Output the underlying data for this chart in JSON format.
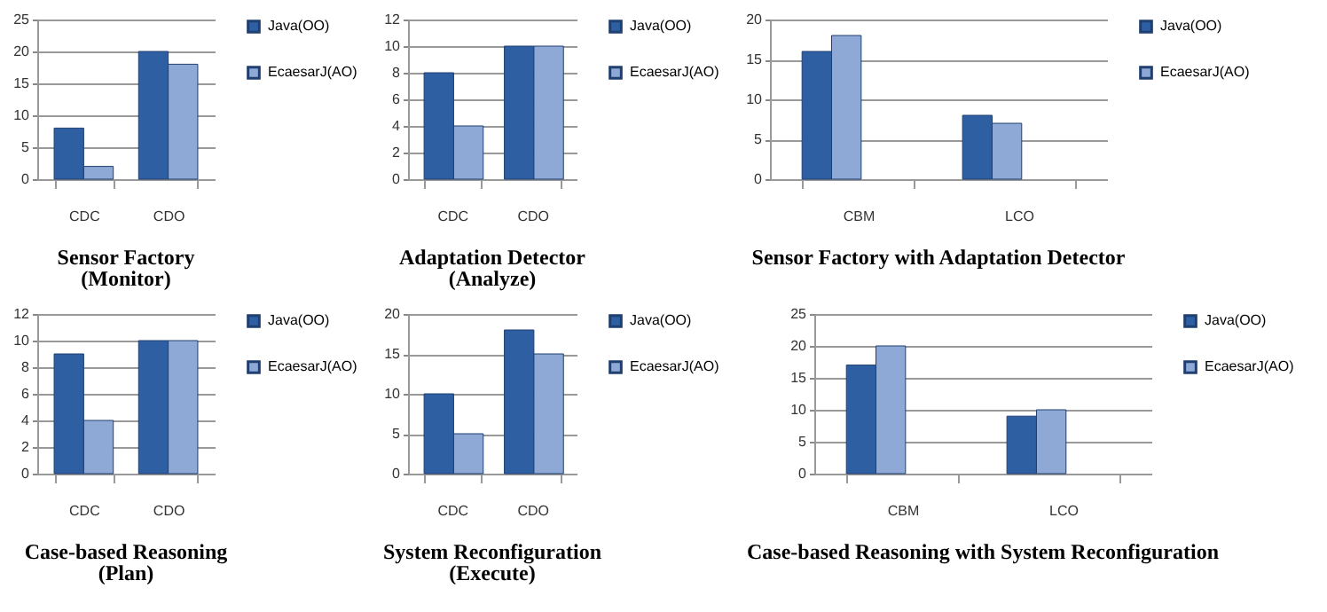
{
  "chart_data": [
    {
      "type": "bar",
      "title": "Sensor Factory",
      "subtitle": "(Monitor)",
      "categories": [
        "CDC",
        "CDO"
      ],
      "series": [
        {
          "name": "Java(OO)",
          "color": "#2e5fa3",
          "values": [
            8,
            20
          ]
        },
        {
          "name": "EcaesarJ(AO)",
          "color": "#8fa9d6",
          "values": [
            2,
            18
          ]
        }
      ],
      "ylim": [
        0,
        25
      ],
      "yticks": [
        0,
        5,
        10,
        15,
        20,
        25
      ],
      "grid": "y",
      "legend": "right"
    },
    {
      "type": "bar",
      "title": "Adaptation Detector",
      "subtitle": "(Analyze)",
      "categories": [
        "CDC",
        "CDO"
      ],
      "series": [
        {
          "name": "Java(OO)",
          "color": "#2e5fa3",
          "values": [
            8,
            10
          ]
        },
        {
          "name": "EcaesarJ(AO)",
          "color": "#8fa9d6",
          "values": [
            4,
            10
          ]
        }
      ],
      "ylim": [
        0,
        12
      ],
      "yticks": [
        0,
        2,
        4,
        6,
        8,
        10,
        12
      ],
      "grid": "y",
      "legend": "right"
    },
    {
      "type": "bar",
      "title": "Sensor Factory with Adaptation Detector",
      "categories": [
        "CBM",
        "LCO"
      ],
      "series": [
        {
          "name": "Java(OO)",
          "color": "#2e5fa3",
          "values": [
            16,
            8
          ]
        },
        {
          "name": "EcaesarJ(AO)",
          "color": "#8fa9d6",
          "values": [
            18,
            7
          ]
        }
      ],
      "ylim": [
        0,
        20
      ],
      "yticks": [
        0,
        5,
        10,
        15,
        20
      ],
      "grid": "y",
      "legend": "right"
    },
    {
      "type": "bar",
      "title": "Case-based Reasoning",
      "subtitle": "(Plan)",
      "categories": [
        "CDC",
        "CDO"
      ],
      "series": [
        {
          "name": "Java(OO)",
          "color": "#2e5fa3",
          "values": [
            9,
            10
          ]
        },
        {
          "name": "EcaesarJ(AO)",
          "color": "#8fa9d6",
          "values": [
            4,
            10
          ]
        }
      ],
      "ylim": [
        0,
        12
      ],
      "yticks": [
        0,
        2,
        4,
        6,
        8,
        10,
        12
      ],
      "grid": "y",
      "legend": "right"
    },
    {
      "type": "bar",
      "title": "System Reconfiguration",
      "subtitle": "(Execute)",
      "categories": [
        "CDC",
        "CDO"
      ],
      "series": [
        {
          "name": "Java(OO)",
          "color": "#2e5fa3",
          "values": [
            10,
            18
          ]
        },
        {
          "name": "EcaesarJ(AO)",
          "color": "#8fa9d6",
          "values": [
            5,
            15
          ]
        }
      ],
      "ylim": [
        0,
        20
      ],
      "yticks": [
        0,
        5,
        10,
        15,
        20
      ],
      "grid": "y",
      "legend": "right"
    },
    {
      "type": "bar",
      "title": "Case-based Reasoning with System Reconfiguration",
      "categories": [
        "CBM",
        "LCO"
      ],
      "series": [
        {
          "name": "Java(OO)",
          "color": "#2e5fa3",
          "values": [
            17,
            9
          ]
        },
        {
          "name": "EcaesarJ(AO)",
          "color": "#8fa9d6",
          "values": [
            20,
            10
          ]
        }
      ],
      "ylim": [
        0,
        25
      ],
      "yticks": [
        0,
        5,
        10,
        15,
        20,
        25
      ],
      "grid": "y",
      "legend": "right"
    }
  ]
}
